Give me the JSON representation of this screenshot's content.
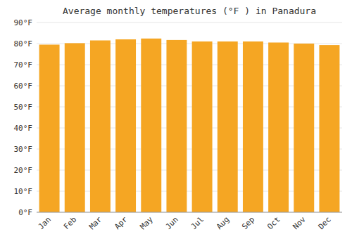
{
  "chart_data": {
    "type": "bar",
    "title": "Average monthly temperatures (°F ) in Panadura",
    "categories": [
      "Jan",
      "Feb",
      "Mar",
      "Apr",
      "May",
      "Jun",
      "Jul",
      "Aug",
      "Sep",
      "Oct",
      "Nov",
      "Dec"
    ],
    "values": [
      79.5,
      80.2,
      81.5,
      82.0,
      82.4,
      81.7,
      81.0,
      81.0,
      81.0,
      80.5,
      80.0,
      79.3
    ],
    "color": "#F5A623",
    "ylim": [
      0,
      90
    ],
    "yticks": [
      {
        "value": 0,
        "label": "0°F"
      },
      {
        "value": 10,
        "label": "10°F"
      },
      {
        "value": 20,
        "label": "20°F"
      },
      {
        "value": 30,
        "label": "30°F"
      },
      {
        "value": 40,
        "label": "40°F"
      },
      {
        "value": 50,
        "label": "50°F"
      },
      {
        "value": 60,
        "label": "60°F"
      },
      {
        "value": 70,
        "label": "70°F"
      },
      {
        "value": 80,
        "label": "80°F"
      },
      {
        "value": 90,
        "label": "90°F"
      }
    ],
    "grid": true
  }
}
